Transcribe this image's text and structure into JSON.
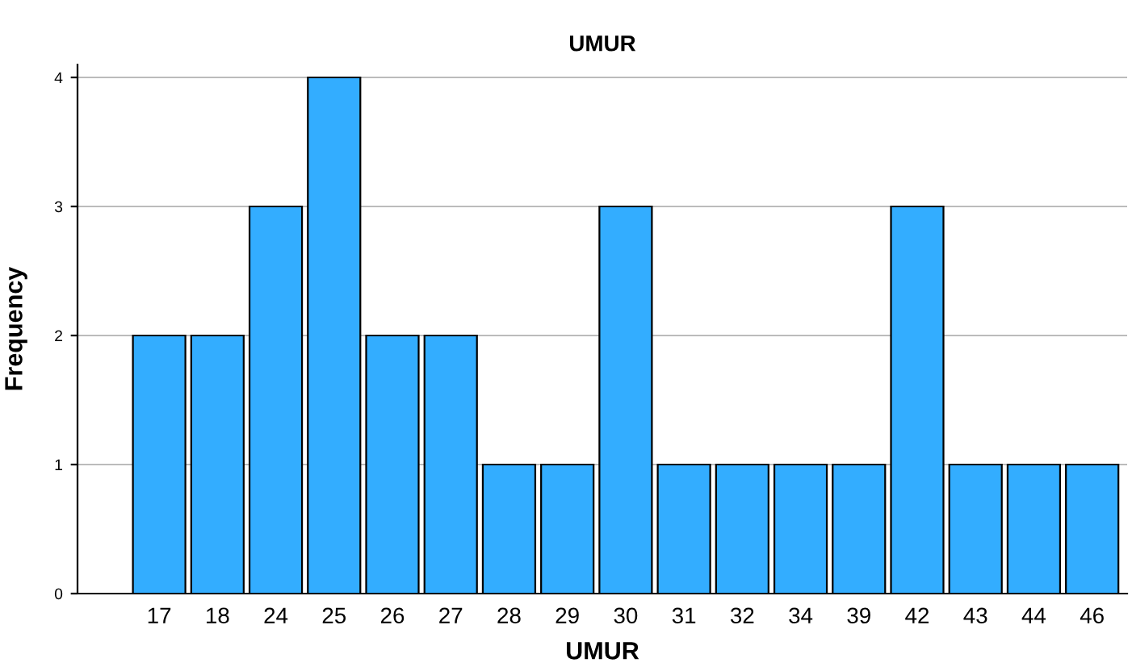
{
  "chart_data": {
    "type": "bar",
    "title": "UMUR",
    "xlabel": "UMUR",
    "ylabel": "Frequency",
    "categories": [
      "17",
      "18",
      "24",
      "25",
      "26",
      "27",
      "28",
      "29",
      "30",
      "31",
      "32",
      "34",
      "39",
      "42",
      "43",
      "44",
      "46"
    ],
    "values": [
      2,
      2,
      3,
      4,
      2,
      2,
      1,
      1,
      3,
      1,
      1,
      1,
      1,
      3,
      1,
      1,
      1
    ],
    "color": "#33adff",
    "ylim": [
      0,
      4.1
    ],
    "yticks": [
      0,
      1,
      2,
      3,
      4
    ],
    "grid": "y"
  }
}
